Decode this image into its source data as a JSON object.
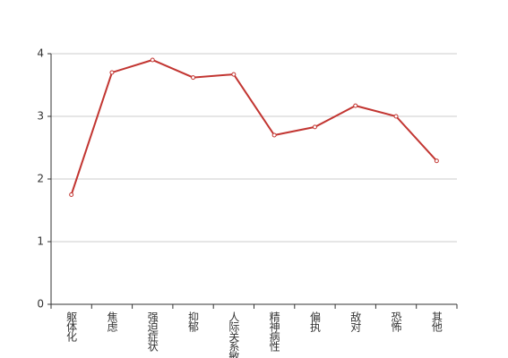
{
  "chart_data": {
    "type": "line",
    "categories": [
      "躯体化",
      "焦虑",
      "强迫症状",
      "抑郁",
      "人际关系敏感",
      "精神病性",
      "偏执",
      "敌对",
      "恐怖",
      "其他"
    ],
    "series": [
      {
        "color": "#c23531",
        "values": [
          1.75,
          3.7,
          3.9,
          3.62,
          3.67,
          2.7,
          2.83,
          3.17,
          3.0,
          2.29
        ]
      }
    ],
    "ylim": [
      0,
      4
    ],
    "yticks": [
      0,
      1,
      2,
      3,
      4
    ],
    "grid": true
  }
}
